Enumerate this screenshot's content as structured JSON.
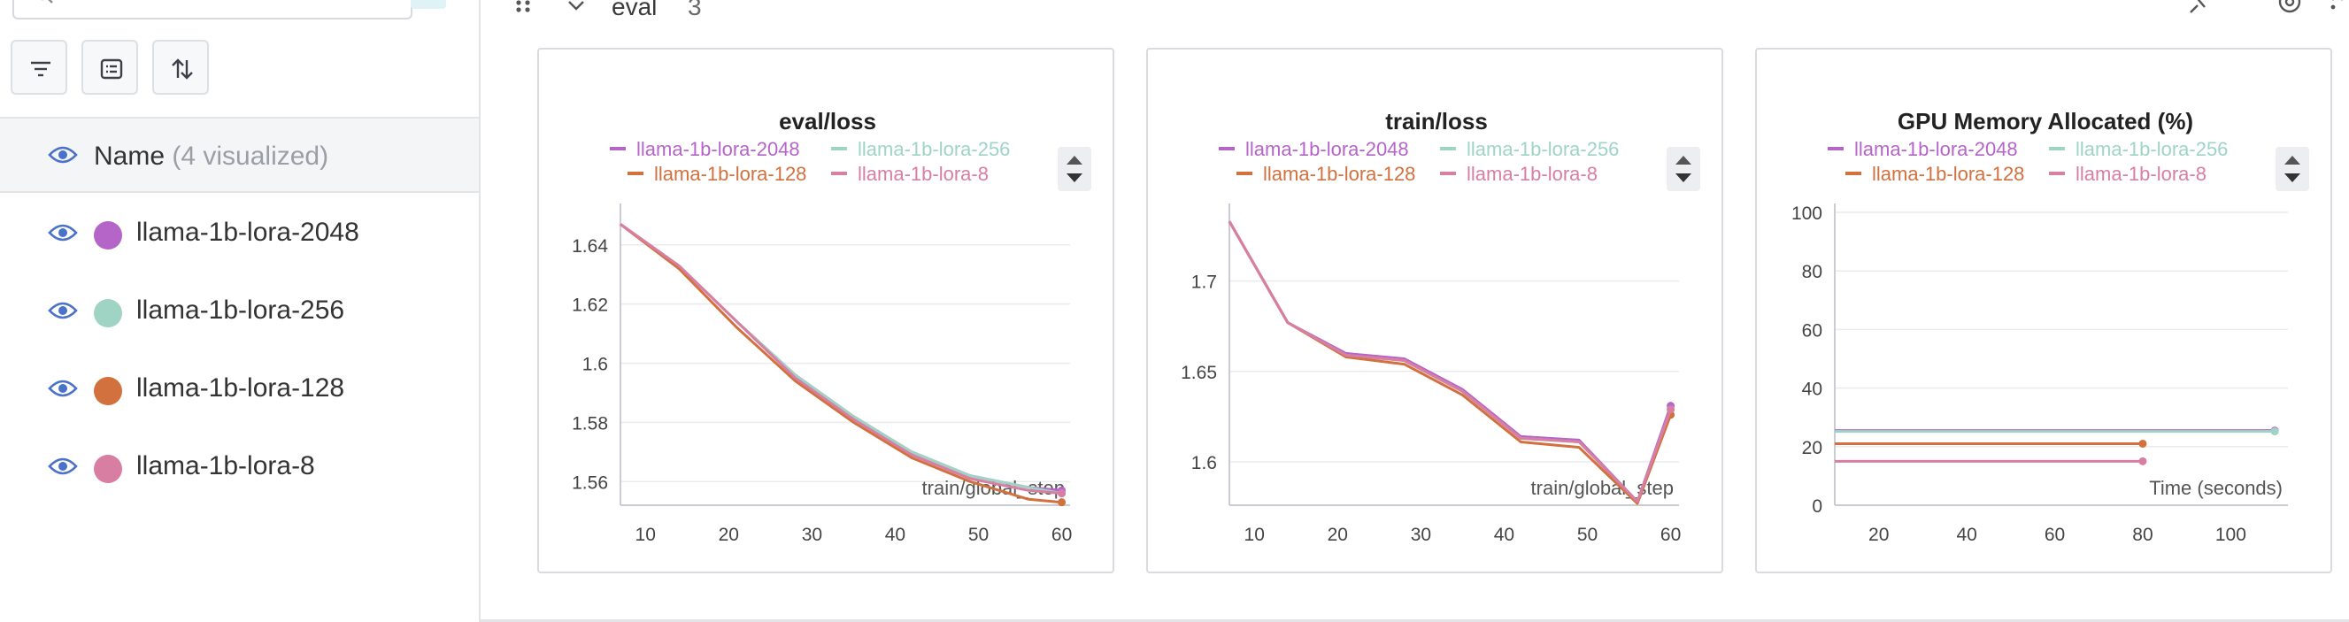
{
  "sidebar": {
    "name_header": {
      "label": "Name",
      "sub": "(4 visualized)"
    },
    "runs": [
      {
        "name": "llama-1b-lora-2048",
        "color": "#b565c8"
      },
      {
        "name": "llama-1b-lora-256",
        "color": "#9fd4c5"
      },
      {
        "name": "llama-1b-lora-128",
        "color": "#d2703e"
      },
      {
        "name": "llama-1b-lora-8",
        "color": "#d87ea2"
      }
    ]
  },
  "section": {
    "title": "eval",
    "count": "3"
  },
  "chart_data": [
    {
      "type": "line",
      "title": "eval/loss",
      "xlabel": "train/global_step",
      "xlim": [
        7,
        61
      ],
      "ylim": [
        1.552,
        1.651
      ],
      "x_ticks": [
        10,
        20,
        30,
        40,
        50,
        60
      ],
      "y_ticks": [
        1.56,
        1.58,
        1.6,
        1.62,
        1.64
      ],
      "y_tick_labels": [
        "1.56",
        "1.58",
        "1.6",
        "1.62",
        "1.64"
      ],
      "grid": true,
      "legend": "top",
      "series": [
        {
          "name": "llama-1b-lora-2048",
          "color": "#b565c8",
          "x": [
            7,
            14,
            21,
            28,
            35,
            42,
            49,
            56,
            60
          ],
          "y": [
            1.647,
            1.633,
            1.614,
            1.596,
            1.582,
            1.57,
            1.562,
            1.558,
            1.557
          ]
        },
        {
          "name": "llama-1b-lora-256",
          "color": "#9fd4c5",
          "x": [
            7,
            14,
            21,
            28,
            35,
            42,
            49,
            56,
            60
          ],
          "y": [
            1.647,
            1.633,
            1.614,
            1.596,
            1.582,
            1.57,
            1.562,
            1.558,
            1.556
          ]
        },
        {
          "name": "llama-1b-lora-128",
          "color": "#d2703e",
          "x": [
            7,
            14,
            21,
            28,
            35,
            42,
            49,
            56,
            60
          ],
          "y": [
            1.647,
            1.632,
            1.612,
            1.594,
            1.58,
            1.568,
            1.56,
            1.554,
            1.553
          ]
        },
        {
          "name": "llama-1b-lora-8",
          "color": "#d87ea2",
          "x": [
            7,
            14,
            21,
            28,
            35,
            42,
            49,
            56,
            60
          ],
          "y": [
            1.647,
            1.633,
            1.614,
            1.595,
            1.581,
            1.569,
            1.561,
            1.557,
            1.556
          ]
        }
      ]
    },
    {
      "type": "line",
      "title": "train/loss",
      "xlabel": "train/global_step",
      "xlim": [
        7,
        61
      ],
      "ylim": [
        1.576,
        1.738
      ],
      "x_ticks": [
        10,
        20,
        30,
        40,
        50,
        60
      ],
      "y_ticks": [
        1.6,
        1.65,
        1.7
      ],
      "y_tick_labels": [
        "1.6",
        "1.65",
        "1.7"
      ],
      "grid": true,
      "legend": "top",
      "series": [
        {
          "name": "llama-1b-lora-2048",
          "color": "#b565c8",
          "x": [
            7,
            14,
            21,
            28,
            35,
            42,
            49,
            56,
            60
          ],
          "y": [
            1.733,
            1.677,
            1.66,
            1.657,
            1.64,
            1.614,
            1.612,
            1.578,
            1.631
          ]
        },
        {
          "name": "llama-1b-lora-256",
          "color": "#9fd4c5",
          "x": [
            7,
            14,
            21,
            28,
            35,
            42,
            49,
            56,
            60
          ],
          "y": [
            1.733,
            1.677,
            1.659,
            1.656,
            1.639,
            1.613,
            1.611,
            1.578,
            1.629
          ]
        },
        {
          "name": "llama-1b-lora-128",
          "color": "#d2703e",
          "x": [
            7,
            14,
            21,
            28,
            35,
            42,
            49,
            56,
            60
          ],
          "y": [
            1.733,
            1.677,
            1.658,
            1.654,
            1.637,
            1.611,
            1.608,
            1.577,
            1.626
          ]
        },
        {
          "name": "llama-1b-lora-8",
          "color": "#d87ea2",
          "x": [
            7,
            14,
            21,
            28,
            35,
            42,
            49,
            56,
            60
          ],
          "y": [
            1.733,
            1.677,
            1.659,
            1.656,
            1.639,
            1.613,
            1.611,
            1.578,
            1.629
          ]
        }
      ]
    },
    {
      "type": "line",
      "title": "GPU Memory Allocated (%)",
      "xlabel": "Time (seconds)",
      "xlim": [
        10,
        113
      ],
      "ylim": [
        0,
        100
      ],
      "x_ticks": [
        20,
        40,
        60,
        80,
        100
      ],
      "y_ticks": [
        0,
        20,
        40,
        60,
        80,
        100
      ],
      "y_tick_labels": [
        "0",
        "20",
        "40",
        "60",
        "80",
        "100"
      ],
      "grid": true,
      "legend": "top",
      "series": [
        {
          "name": "llama-1b-lora-2048",
          "color": "#b565c8",
          "x": [
            10,
            110
          ],
          "y": [
            25.5,
            25.5
          ]
        },
        {
          "name": "llama-1b-lora-256",
          "color": "#9fd4c5",
          "x": [
            10,
            110
          ],
          "y": [
            25.2,
            25.2
          ]
        },
        {
          "name": "llama-1b-lora-128",
          "color": "#d2703e",
          "x": [
            10,
            80
          ],
          "y": [
            21,
            21
          ]
        },
        {
          "name": "llama-1b-lora-8",
          "color": "#d87ea2",
          "x": [
            10,
            80
          ],
          "y": [
            15,
            15
          ]
        }
      ]
    }
  ]
}
